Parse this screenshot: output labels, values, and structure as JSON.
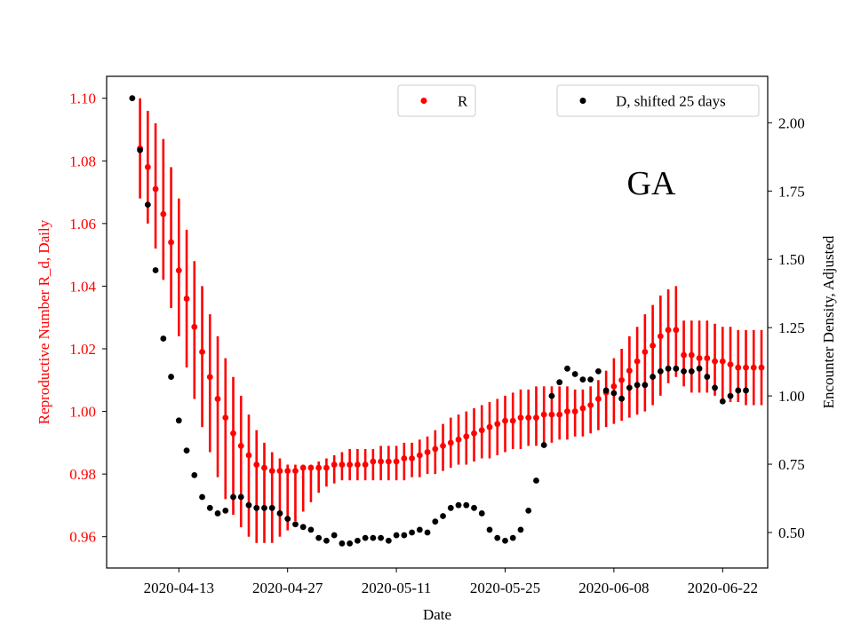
{
  "chart_data": {
    "type": "scatter",
    "annotation": "GA",
    "xlabel": "Date",
    "ylabel_left": "Reproductive Number R_d, Daily",
    "ylabel_right": "Encounter Density, Adjusted",
    "x_start": "2020-04-04",
    "x_ticks": [
      "2020-04-13",
      "2020-04-27",
      "2020-05-11",
      "2020-05-25",
      "2020-06-08",
      "2020-06-22"
    ],
    "x_tick_days": [
      9,
      23,
      37,
      51,
      65,
      79
    ],
    "xlim": [
      -0.3,
      84.8
    ],
    "ylim_left": [
      0.95,
      1.107
    ],
    "ylim_right": [
      0.37,
      2.17
    ],
    "yticks_left": [
      0.96,
      0.98,
      1.0,
      1.02,
      1.04,
      1.06,
      1.08,
      1.1
    ],
    "ytick_labels_left": [
      "0.96",
      "0.98",
      "1.00",
      "1.02",
      "1.04",
      "1.06",
      "1.08",
      "1.10"
    ],
    "yticks_right": [
      0.5,
      0.75,
      1.0,
      1.25,
      1.5,
      1.75,
      2.0
    ],
    "ytick_labels_right": [
      "0.50",
      "0.75",
      "1.00",
      "1.25",
      "1.50",
      "1.75",
      "2.00"
    ],
    "colors": {
      "R": "#ff0000",
      "D": "#000000",
      "left_axis_text": "#ff0000",
      "right_axis_text": "#000000"
    },
    "legend": [
      {
        "label": "R",
        "position": "top-center"
      },
      {
        "label": "D, shifted 25 days",
        "position": "top-right"
      }
    ],
    "series": [
      {
        "name": "R",
        "axis": "left",
        "x_start_day": 4,
        "values": [
          1.084,
          1.078,
          1.071,
          1.063,
          1.054,
          1.045,
          1.036,
          1.027,
          1.019,
          1.011,
          1.004,
          0.998,
          0.993,
          0.989,
          0.986,
          0.983,
          0.982,
          0.981,
          0.981,
          0.981,
          0.981,
          0.982,
          0.982,
          0.982,
          0.982,
          0.983,
          0.983,
          0.983,
          0.983,
          0.983,
          0.984,
          0.984,
          0.984,
          0.984,
          0.985,
          0.985,
          0.986,
          0.987,
          0.988,
          0.989,
          0.99,
          0.991,
          0.992,
          0.993,
          0.994,
          0.995,
          0.996,
          0.997,
          0.997,
          0.998,
          0.998,
          0.998,
          0.999,
          0.999,
          0.999,
          1.0,
          1.0,
          1.001,
          1.002,
          1.004,
          1.006,
          1.008,
          1.01,
          1.013,
          1.016,
          1.019,
          1.021,
          1.024,
          1.026,
          1.026,
          1.018,
          1.018,
          1.017,
          1.017,
          1.016,
          1.016,
          1.015,
          1.014,
          1.014,
          1.014,
          1.014
        ],
        "lower": [
          1.068,
          1.06,
          1.052,
          1.042,
          1.033,
          1.024,
          1.014,
          1.004,
          0.995,
          0.987,
          0.979,
          0.972,
          0.967,
          0.963,
          0.96,
          0.958,
          0.958,
          0.958,
          0.96,
          0.962,
          0.965,
          0.968,
          0.971,
          0.974,
          0.976,
          0.977,
          0.978,
          0.978,
          0.978,
          0.978,
          0.978,
          0.978,
          0.978,
          0.978,
          0.978,
          0.979,
          0.979,
          0.98,
          0.98,
          0.981,
          0.982,
          0.983,
          0.983,
          0.984,
          0.985,
          0.985,
          0.986,
          0.987,
          0.988,
          0.988,
          0.989,
          0.989,
          0.99,
          0.99,
          0.991,
          0.991,
          0.992,
          0.992,
          0.993,
          0.994,
          0.995,
          0.996,
          0.997,
          0.998,
          0.999,
          1.0,
          1.002,
          1.005,
          1.009,
          1.011,
          1.008,
          1.006,
          1.006,
          1.006,
          1.005,
          1.004,
          1.003,
          1.003,
          1.002,
          1.002,
          1.002
        ],
        "upper": [
          1.1,
          1.096,
          1.092,
          1.087,
          1.078,
          1.068,
          1.058,
          1.048,
          1.04,
          1.031,
          1.024,
          1.017,
          1.011,
          1.005,
          0.999,
          0.994,
          0.99,
          0.987,
          0.985,
          0.983,
          0.983,
          0.983,
          0.983,
          0.984,
          0.985,
          0.986,
          0.987,
          0.988,
          0.988,
          0.988,
          0.988,
          0.989,
          0.989,
          0.989,
          0.99,
          0.99,
          0.991,
          0.992,
          0.994,
          0.996,
          0.998,
          0.999,
          1.0,
          1.001,
          1.002,
          1.003,
          1.004,
          1.005,
          1.006,
          1.007,
          1.007,
          1.008,
          1.008,
          1.008,
          1.008,
          1.008,
          1.007,
          1.007,
          1.008,
          1.01,
          1.013,
          1.017,
          1.02,
          1.024,
          1.027,
          1.031,
          1.034,
          1.037,
          1.039,
          1.04,
          1.029,
          1.029,
          1.029,
          1.029,
          1.028,
          1.027,
          1.027,
          1.026,
          1.026,
          1.026,
          1.026
        ]
      },
      {
        "name": "D, shifted 25 days",
        "axis": "right",
        "x_start_day": 3,
        "values": [
          2.09,
          1.9,
          1.7,
          1.46,
          1.21,
          1.07,
          0.91,
          0.8,
          0.71,
          0.63,
          0.59,
          0.57,
          0.58,
          0.63,
          0.63,
          0.6,
          0.59,
          0.59,
          0.59,
          0.57,
          0.55,
          0.53,
          0.52,
          0.51,
          0.48,
          0.47,
          0.49,
          0.46,
          0.46,
          0.47,
          0.48,
          0.48,
          0.48,
          0.47,
          0.49,
          0.49,
          0.5,
          0.51,
          0.5,
          0.54,
          0.56,
          0.59,
          0.6,
          0.6,
          0.59,
          0.57,
          0.51,
          0.48,
          0.47,
          0.48,
          0.51,
          0.58,
          0.69,
          0.82,
          1.0,
          1.05,
          1.1,
          1.08,
          1.06,
          1.06,
          1.09,
          1.02,
          1.01,
          0.99,
          1.03,
          1.04,
          1.04,
          1.07,
          1.09,
          1.1,
          1.1,
          1.09,
          1.09,
          1.1,
          1.07,
          1.03,
          0.98,
          1.0,
          1.02,
          1.02
        ]
      }
    ]
  }
}
